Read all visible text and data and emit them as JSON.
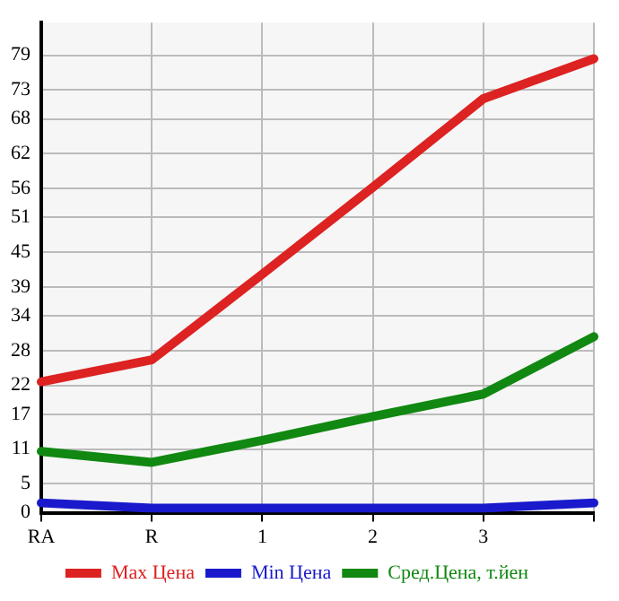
{
  "chart_data": {
    "type": "line",
    "categories": [
      "RA",
      "R",
      "1",
      "2",
      "3",
      null
    ],
    "series": [
      {
        "name": "Max Цена",
        "color": "#dd2222",
        "values": [
          22.6,
          26.4,
          41.2,
          56.2,
          71.5,
          78.4
        ]
      },
      {
        "name": "Min Цена",
        "color": "#1a1acc",
        "values": [
          1.7,
          0.8,
          0.8,
          0.8,
          0.8,
          1.7
        ]
      },
      {
        "name": "Сред.Цена, т.йен",
        "color": "#118811",
        "values": [
          10.6,
          8.7,
          12.5,
          16.6,
          20.5,
          30.4
        ]
      }
    ],
    "ylim": [
      0,
      84.64
    ],
    "yticks": [
      0,
      5,
      11,
      17,
      22,
      28,
      34,
      39,
      45,
      51,
      56,
      62,
      68,
      73,
      79
    ],
    "grid": true,
    "legend": "bottom",
    "marker": "none",
    "line_style": "solid"
  }
}
